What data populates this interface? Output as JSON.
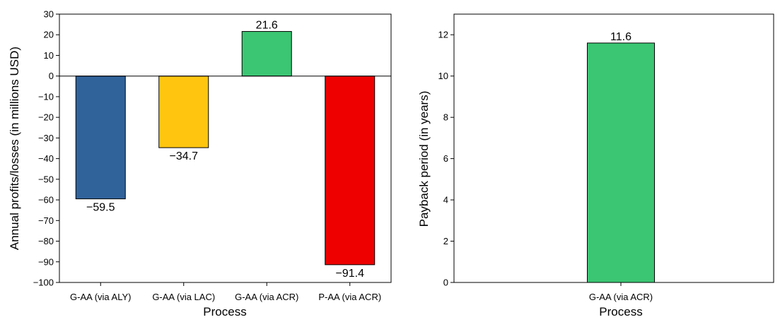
{
  "chart_data": [
    {
      "type": "bar",
      "categories": [
        "G-AA (via ALY)",
        "G-AA (via LAC)",
        "G-AA (via ACR)",
        "P-AA (via ACR)"
      ],
      "values": [
        -59.5,
        -34.7,
        21.6,
        -91.4
      ],
      "value_labels": [
        "−59.5",
        "−34.7",
        "21.6",
        "−91.4"
      ],
      "colors": [
        "#31639b",
        "#ffc50f",
        "#3bc673",
        "#ee0000"
      ],
      "xlabel": "Process",
      "ylabel": "Annual profits/losses (in millions USD)",
      "ylim": [
        -100,
        30
      ],
      "yticks": [
        30,
        20,
        10,
        0,
        -10,
        -20,
        -30,
        -40,
        -50,
        -60,
        -70,
        -80,
        -90,
        -100
      ],
      "ytick_labels": [
        "30",
        "20",
        "10",
        "0",
        "−10",
        "−20",
        "−30",
        "−40",
        "−50",
        "−60",
        "−70",
        "−80",
        "−90",
        "−100"
      ],
      "zero_line": true,
      "grid": false
    },
    {
      "type": "bar",
      "categories": [
        "G-AA (via ACR)"
      ],
      "values": [
        11.6
      ],
      "value_labels": [
        "11.6"
      ],
      "colors": [
        "#3bc673"
      ],
      "xlabel": "Process",
      "ylabel": "Payback period (in years)",
      "ylim": [
        0,
        13
      ],
      "yticks": [
        0,
        2,
        4,
        6,
        8,
        10,
        12
      ],
      "ytick_labels": [
        "0",
        "2",
        "4",
        "6",
        "8",
        "10",
        "12"
      ],
      "grid": false
    }
  ]
}
